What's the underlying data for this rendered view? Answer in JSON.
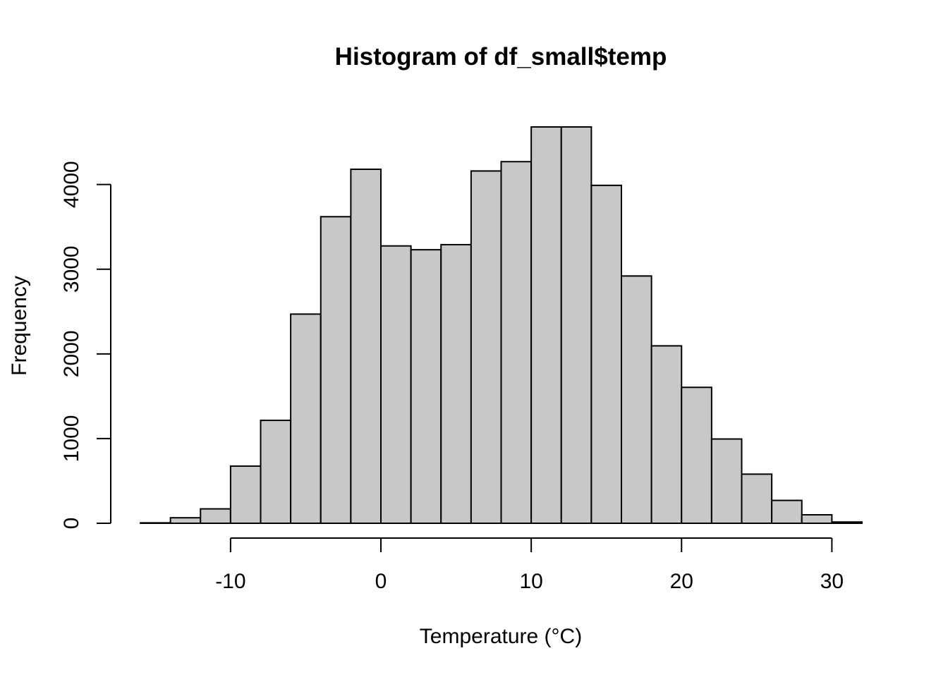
{
  "chart_data": {
    "type": "bar",
    "subtype": "histogram",
    "title": "Histogram of df_small$temp",
    "xlabel": "Temperature (°C)",
    "ylabel": "Frequency",
    "bin_edges": [
      -16,
      -14,
      -12,
      -10,
      -8,
      -6,
      -4,
      -2,
      0,
      2,
      4,
      6,
      8,
      10,
      12,
      14,
      16,
      18,
      20,
      22,
      24,
      26,
      28,
      30,
      32
    ],
    "values": [
      5,
      65,
      170,
      675,
      1215,
      2470,
      3620,
      4180,
      3275,
      3230,
      3290,
      4160,
      4270,
      4680,
      4680,
      3990,
      2920,
      2095,
      1605,
      995,
      580,
      270,
      100,
      15
    ],
    "xlim": [
      -16,
      32
    ],
    "ylim": [
      0,
      4680
    ],
    "x_ticks": [
      -10,
      0,
      10,
      20,
      30
    ],
    "x_tick_labels": [
      "-10",
      "0",
      "10",
      "20",
      "30"
    ],
    "y_ticks": [
      0,
      1000,
      2000,
      3000,
      4000
    ],
    "y_tick_labels": [
      "0",
      "1000",
      "2000",
      "3000",
      "4000"
    ],
    "bar_fill": "#c8c8c8",
    "bar_stroke": "#000000",
    "grid": false,
    "legend": "none"
  }
}
